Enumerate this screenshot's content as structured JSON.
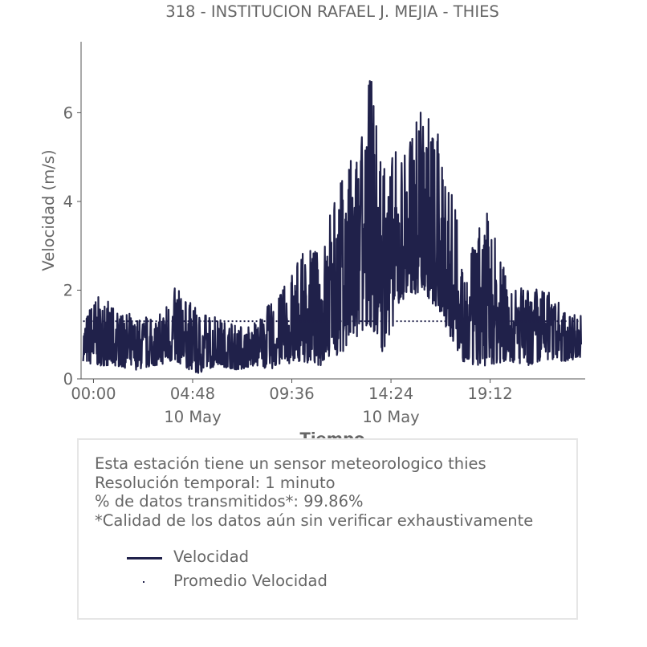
{
  "chart_data": {
    "type": "line",
    "title": "318 - INSTITUCION RAFAEL J. MEJIA - THIES",
    "xlabel": "Tiempo",
    "ylabel": "Velocidad (m/s)",
    "x_unit": "hours since 00:00 10 May",
    "xlim": [
      -0.6,
      23.8
    ],
    "ylim": [
      0,
      7.6
    ],
    "yticks": [
      0,
      2,
      4,
      6
    ],
    "ytick_labels": [
      "0",
      "2",
      "4",
      "6"
    ],
    "xticks": [
      {
        "value": 0.0,
        "label": "00:00",
        "sublabel": ""
      },
      {
        "value": 4.8,
        "label": "04:48",
        "sublabel": "10 May"
      },
      {
        "value": 9.6,
        "label": "09:36",
        "sublabel": ""
      },
      {
        "value": 14.4,
        "label": "14:24",
        "sublabel": "10 May"
      },
      {
        "value": 19.2,
        "label": "19:12",
        "sublabel": ""
      }
    ],
    "grid": false,
    "series": [
      {
        "name": "Velocidad",
        "color": "#20214a",
        "style": "solid",
        "envelope": [
          {
            "t": -0.5,
            "lo": 0.4,
            "hi": 1.3
          },
          {
            "t": 0.0,
            "lo": 0.3,
            "hi": 1.9
          },
          {
            "t": 1.0,
            "lo": 0.3,
            "hi": 1.7
          },
          {
            "t": 2.0,
            "lo": 0.2,
            "hi": 1.4
          },
          {
            "t": 3.0,
            "lo": 0.3,
            "hi": 1.4
          },
          {
            "t": 4.0,
            "lo": 0.4,
            "hi": 2.1
          },
          {
            "t": 5.0,
            "lo": 0.1,
            "hi": 1.6
          },
          {
            "t": 6.0,
            "lo": 0.3,
            "hi": 1.4
          },
          {
            "t": 7.0,
            "lo": 0.2,
            "hi": 1.2
          },
          {
            "t": 8.0,
            "lo": 0.3,
            "hi": 1.3
          },
          {
            "t": 8.5,
            "lo": 0.2,
            "hi": 1.7
          },
          {
            "t": 9.0,
            "lo": 0.3,
            "hi": 1.9
          },
          {
            "t": 10.0,
            "lo": 0.4,
            "hi": 2.8
          },
          {
            "t": 11.0,
            "lo": 0.3,
            "hi": 3.0
          },
          {
            "t": 12.0,
            "lo": 0.6,
            "hi": 4.6
          },
          {
            "t": 13.0,
            "lo": 0.9,
            "hi": 5.6
          },
          {
            "t": 13.4,
            "lo": 1.2,
            "hi": 6.9
          },
          {
            "t": 14.0,
            "lo": 0.6,
            "hi": 5.0
          },
          {
            "t": 15.0,
            "lo": 1.8,
            "hi": 5.3
          },
          {
            "t": 16.0,
            "lo": 2.0,
            "hi": 6.3
          },
          {
            "t": 17.0,
            "lo": 1.2,
            "hi": 5.2
          },
          {
            "t": 18.0,
            "lo": 0.3,
            "hi": 2.5
          },
          {
            "t": 19.0,
            "lo": 0.3,
            "hi": 3.9
          },
          {
            "t": 20.0,
            "lo": 0.4,
            "hi": 2.3
          },
          {
            "t": 21.0,
            "lo": 0.3,
            "hi": 2.0
          },
          {
            "t": 22.0,
            "lo": 0.4,
            "hi": 2.1
          },
          {
            "t": 23.0,
            "lo": 0.4,
            "hi": 1.4
          },
          {
            "t": 23.6,
            "lo": 0.5,
            "hi": 1.5
          }
        ],
        "sampling_note": "1-minute series, approx. 1440 samples over 24 h"
      },
      {
        "name": "Promedio Velocidad",
        "color": "#20214a",
        "style": "dotted",
        "value": 1.3
      }
    ]
  },
  "info": {
    "lines": [
      "Esta estación tiene un sensor meteorologico thies",
      "Resolución temporal: 1 minuto",
      "% de datos transmitidos*: 99.86%",
      "*Calidad de los datos aún sin verificar exhaustivamente"
    ]
  },
  "legend": {
    "items": [
      {
        "label": "Velocidad",
        "marker": "line"
      },
      {
        "label": "Promedio Velocidad",
        "marker": "dot"
      }
    ]
  }
}
